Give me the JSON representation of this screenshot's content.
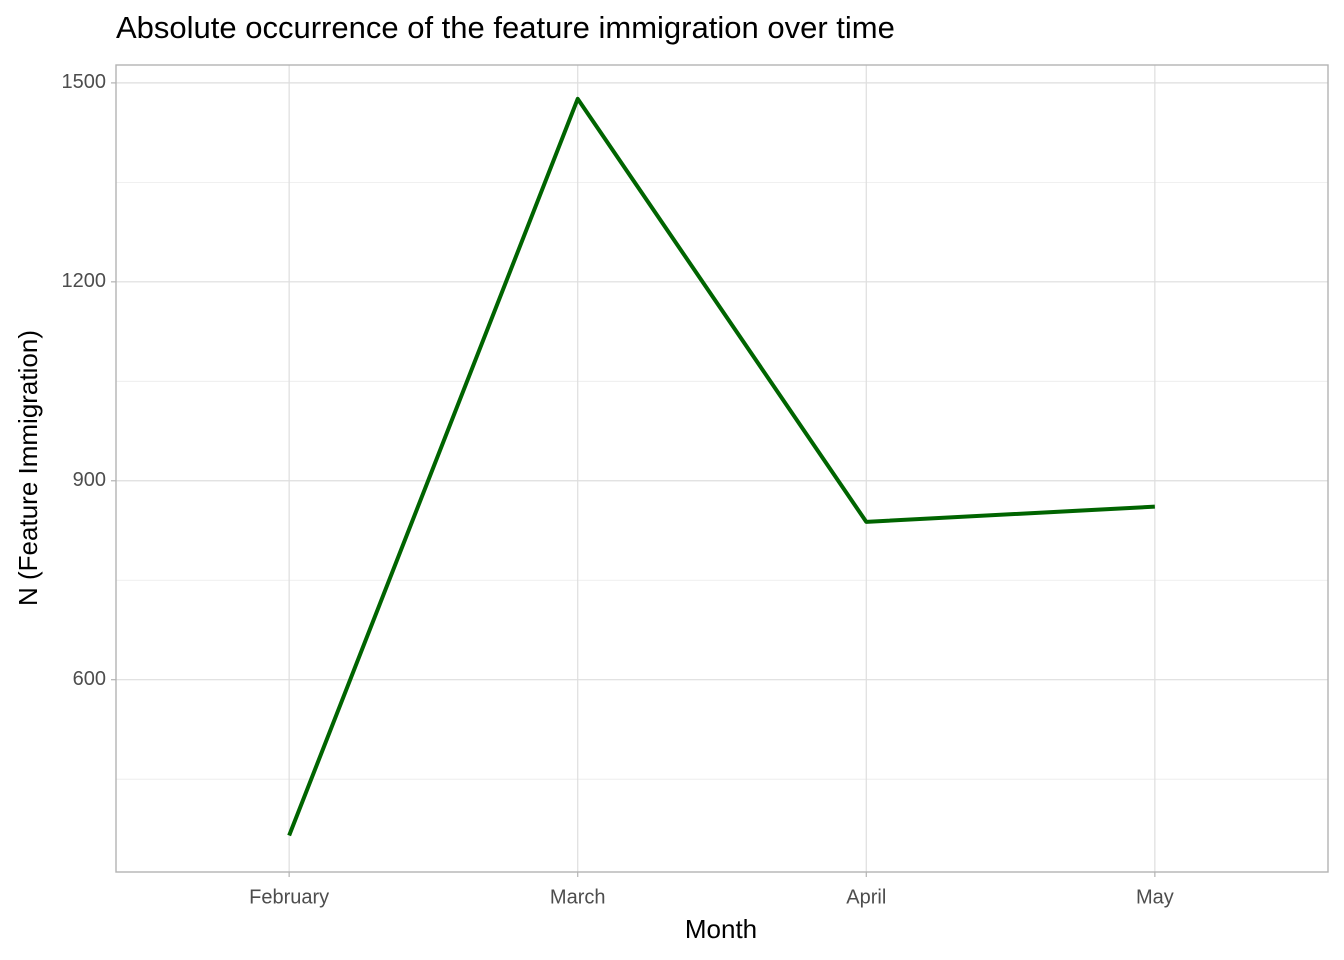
{
  "chart_data": {
    "type": "line",
    "title": "Absolute occurrence of the feature immigration over time",
    "x_label": "Month",
    "y_label": "N (Feature Immigration)",
    "categories": [
      "February",
      "March",
      "April",
      "May"
    ],
    "series": [
      {
        "name": "immigration",
        "color": "#006400",
        "values": [
          365,
          1476,
          838,
          861
        ]
      }
    ],
    "ylim": [
      310,
      1527
    ],
    "yticks": [
      600,
      900,
      1200,
      1500
    ],
    "yminorticks": [
      450,
      750,
      1050,
      1350
    ],
    "grid": true
  }
}
